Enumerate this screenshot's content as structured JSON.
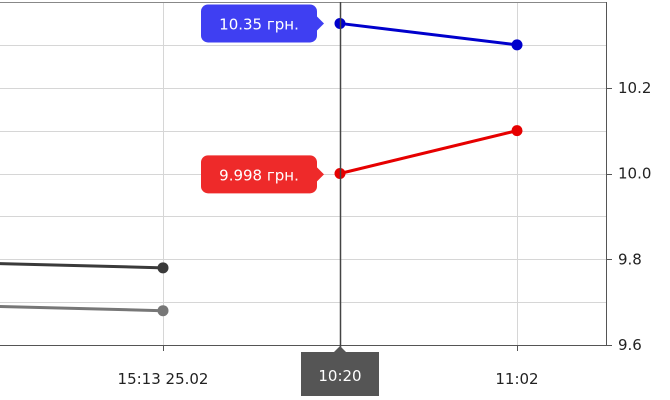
{
  "chart_data": {
    "type": "line",
    "x_ticks": [
      "15:13 25.02",
      "10:20",
      "11:02"
    ],
    "y_ticks": [
      "9.6",
      "9.8",
      "10.0",
      "10.2"
    ],
    "ylim": [
      9.6,
      10.4
    ],
    "grid": true,
    "crosshair": {
      "x_label": "10:20",
      "tooltips": [
        {
          "text": "10.35 грн.",
          "value": 10.35,
          "color": "#3f3ff2"
        },
        {
          "text": "9.998 грн.",
          "value": 9.998,
          "color": "#ee2a2a"
        }
      ]
    },
    "series": [
      {
        "color": "#0000cc",
        "points": [
          {
            "x": "10:20",
            "y": 10.35
          },
          {
            "x": "11:02",
            "y": 10.3
          }
        ]
      },
      {
        "color": "#e60000",
        "points": [
          {
            "x": "10:20",
            "y": 10.0
          },
          {
            "x": "11:02",
            "y": 10.1
          }
        ]
      },
      {
        "color": "#3a3a3a",
        "points": [
          {
            "x": "before-left",
            "y": 9.79
          },
          {
            "x": "15:13 25.02",
            "y": 9.78
          }
        ]
      },
      {
        "color": "#777777",
        "points": [
          {
            "x": "before-left",
            "y": 9.69
          },
          {
            "x": "15:13 25.02",
            "y": 9.68
          }
        ]
      }
    ]
  }
}
